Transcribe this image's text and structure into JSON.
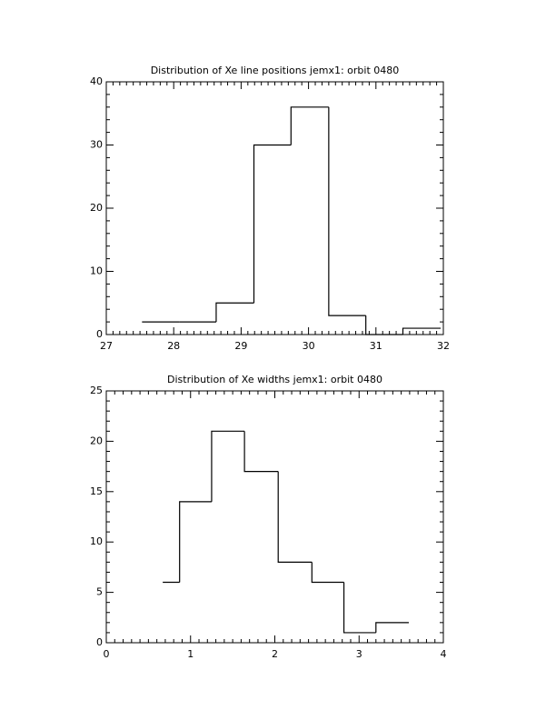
{
  "chart_data": [
    {
      "type": "histogram",
      "title": "Distribution of Xe line positions jemx1: orbit 0480",
      "bins": [
        27.53,
        28.08,
        28.63,
        29.19,
        29.74,
        30.3,
        30.85,
        31.4,
        31.96
      ],
      "values": [
        2,
        2,
        5,
        30,
        36,
        3,
        0,
        1
      ],
      "color": "#000000",
      "xlim": [
        27,
        32
      ],
      "xticks": [
        27,
        28,
        29,
        30,
        31,
        32
      ],
      "ylim": [
        0,
        40
      ],
      "yticks": [
        0,
        10,
        20,
        30,
        40
      ]
    },
    {
      "type": "histogram",
      "title": "Distribution of Xe widths jemx1: orbit 0480",
      "bins": [
        0.67,
        0.87,
        1.25,
        1.64,
        2.04,
        2.44,
        2.82,
        3.2,
        3.59
      ],
      "values": [
        6,
        14,
        21,
        17,
        8,
        6,
        1,
        2
      ],
      "color": "#000000",
      "xlim": [
        0,
        4
      ],
      "xticks": [
        0,
        1,
        2,
        3,
        4
      ],
      "ylim": [
        0,
        25
      ],
      "yticks": [
        0,
        5,
        10,
        15,
        20,
        25
      ]
    }
  ]
}
